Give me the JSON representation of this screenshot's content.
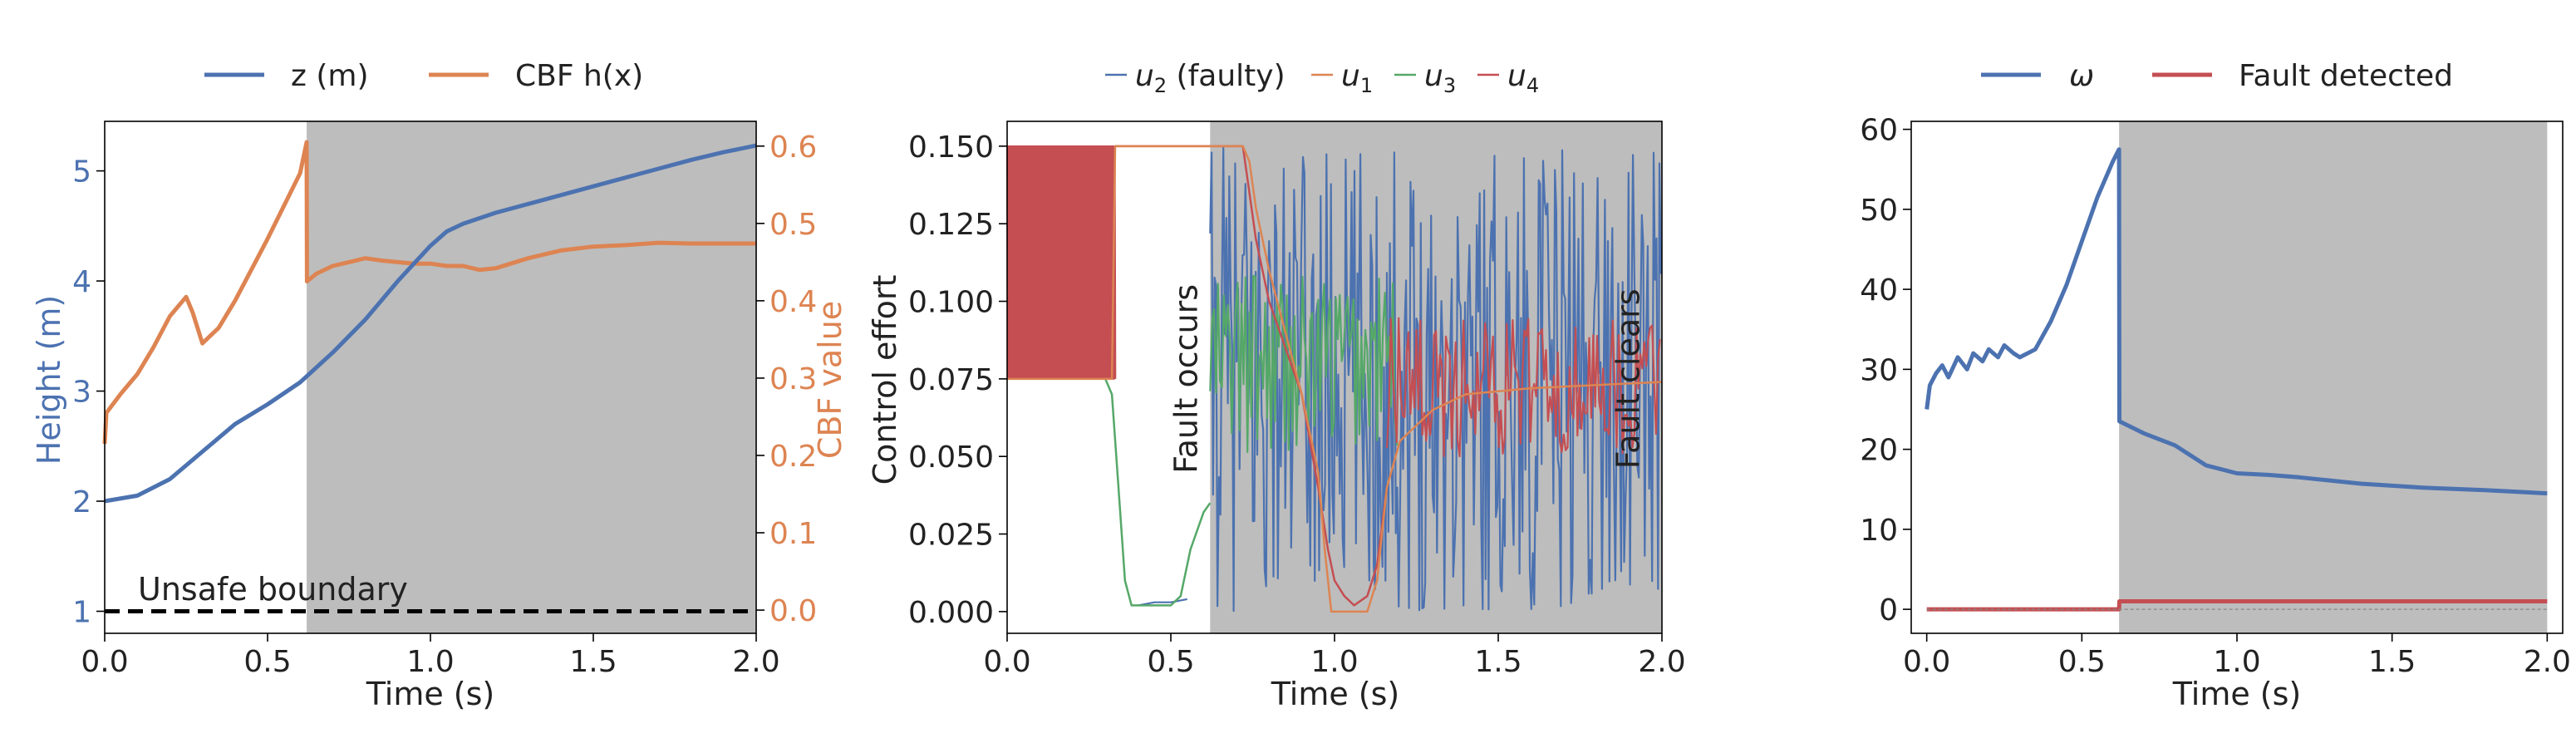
{
  "figure": {
    "colors": {
      "blue": "#4c72b0",
      "orange": "#dd8452",
      "green": "#55a868",
      "red": "#c44e52",
      "shade": "#bdbdbd",
      "axis": "#000000"
    }
  },
  "chart_data": [
    {
      "type": "line",
      "id": "height",
      "xlabel": "Time (s)",
      "ylabel_left": "Height (m)",
      "ylabel_right": "CBF value",
      "xlim": [
        0.0,
        2.0
      ],
      "ylim_left": [
        0.8,
        5.45
      ],
      "ylim_right": [
        -0.03,
        0.632
      ],
      "xticks": [
        0.0,
        0.5,
        1.0,
        1.5,
        2.0
      ],
      "xticklabels": [
        "0.0",
        "0.5",
        "1.0",
        "1.5",
        "2.0"
      ],
      "yticks_left": [
        1,
        2,
        3,
        4,
        5
      ],
      "yticklabels_left": [
        "1",
        "2",
        "3",
        "4",
        "5"
      ],
      "yticks_right": [
        0.0,
        0.1,
        0.2,
        0.3,
        0.4,
        0.5,
        0.6
      ],
      "yticklabels_right": [
        "0.0",
        "0.1",
        "0.2",
        "0.3",
        "0.4",
        "0.5",
        "0.6"
      ],
      "shaded_region_x": [
        0.62,
        2.0
      ],
      "legend": {
        "placement": "top-center",
        "entries": [
          "z (m)",
          "CBF h(x)"
        ]
      },
      "annotation": "Unsafe boundary",
      "boundary_y": 1.0,
      "series": [
        {
          "name": "z (m)",
          "axis": "left",
          "color": "#4c72b0",
          "x": [
            0.0,
            0.1,
            0.2,
            0.3,
            0.4,
            0.5,
            0.6,
            0.7,
            0.8,
            0.9,
            1.0,
            1.05,
            1.1,
            1.2,
            1.3,
            1.4,
            1.5,
            1.6,
            1.7,
            1.8,
            1.9,
            2.0
          ],
          "y": [
            2.0,
            2.05,
            2.2,
            2.45,
            2.7,
            2.88,
            3.08,
            3.35,
            3.65,
            4.0,
            4.32,
            4.45,
            4.52,
            4.62,
            4.7,
            4.78,
            4.86,
            4.94,
            5.02,
            5.1,
            5.17,
            5.23
          ]
        },
        {
          "name": "CBF h(x)",
          "axis": "right",
          "color": "#dd8452",
          "x": [
            0.0,
            0.005,
            0.05,
            0.1,
            0.15,
            0.2,
            0.25,
            0.27,
            0.3,
            0.35,
            0.4,
            0.5,
            0.6,
            0.62,
            0.621,
            0.65,
            0.7,
            0.75,
            0.8,
            0.85,
            0.9,
            0.95,
            1.0,
            1.05,
            1.1,
            1.15,
            1.2,
            1.3,
            1.4,
            1.5,
            1.6,
            1.7,
            1.8,
            1.9,
            2.0
          ],
          "y": [
            0.215,
            0.255,
            0.28,
            0.305,
            0.34,
            0.38,
            0.405,
            0.385,
            0.345,
            0.365,
            0.4,
            0.48,
            0.565,
            0.605,
            0.425,
            0.435,
            0.445,
            0.45,
            0.455,
            0.452,
            0.45,
            0.448,
            0.448,
            0.445,
            0.445,
            0.44,
            0.442,
            0.455,
            0.465,
            0.47,
            0.472,
            0.475,
            0.474,
            0.474,
            0.474
          ]
        }
      ]
    },
    {
      "type": "line",
      "id": "control",
      "xlabel": "Time (s)",
      "ylabel": "Control effort",
      "xlim": [
        0.0,
        2.0
      ],
      "ylim": [
        -0.007,
        0.158
      ],
      "xticks": [
        0.0,
        0.5,
        1.0,
        1.5,
        2.0
      ],
      "xticklabels": [
        "0.0",
        "0.5",
        "1.0",
        "1.5",
        "2.0"
      ],
      "yticks": [
        0.0,
        0.025,
        0.05,
        0.075,
        0.1,
        0.125,
        0.15
      ],
      "yticklabels": [
        "0.000",
        "0.025",
        "0.050",
        "0.075",
        "0.100",
        "0.125",
        "0.150"
      ],
      "shaded_region_x": [
        0.62,
        2.0
      ],
      "legend": {
        "placement": "top-center",
        "entries": [
          "u2 (faulty)",
          "u1",
          "u3",
          "u4"
        ]
      },
      "annotations": [
        {
          "text": "Fault occurs",
          "x": 0.55
        },
        {
          "text": "Fault clears",
          "x": 1.9
        }
      ],
      "series": [
        {
          "name": "u2 (faulty)",
          "color": "#4c72b0",
          "style": "noise",
          "segments": [
            {
              "x0": 0.62,
              "x1": 2.0,
              "lo": 0.0,
              "hi": 0.15
            }
          ],
          "x": [
            0.4,
            0.45,
            0.5,
            0.55
          ],
          "y": [
            0.002,
            0.003,
            0.003,
            0.004
          ]
        },
        {
          "name": "u1",
          "color": "#dd8452",
          "style": "line",
          "x": [
            0.0,
            0.32,
            0.33,
            0.72,
            0.74,
            0.76,
            0.8,
            0.85,
            0.9,
            0.95,
            0.97,
            0.99,
            1.05,
            1.1,
            1.13,
            1.16,
            1.2,
            1.3,
            1.4,
            1.6,
            1.8,
            2.0
          ],
          "y": [
            0.075,
            0.075,
            0.15,
            0.15,
            0.145,
            0.13,
            0.11,
            0.09,
            0.07,
            0.045,
            0.02,
            0.0,
            0.0,
            0.0,
            0.01,
            0.04,
            0.055,
            0.065,
            0.07,
            0.072,
            0.073,
            0.074
          ]
        },
        {
          "name": "u3",
          "color": "#55a868",
          "style": "mixed",
          "x": [
            0.3,
            0.32,
            0.34,
            0.36,
            0.38,
            0.45,
            0.5,
            0.53,
            0.56,
            0.6,
            0.62
          ],
          "y": [
            0.075,
            0.07,
            0.04,
            0.01,
            0.002,
            0.002,
            0.002,
            0.005,
            0.02,
            0.032,
            0.035
          ],
          "noise": {
            "x0": 0.62,
            "x1": 1.2,
            "lo": 0.05,
            "hi": 0.11
          }
        },
        {
          "name": "u4",
          "color": "#c44e52",
          "style": "mixed",
          "band": {
            "x0": 0.0,
            "x1": 0.33,
            "lo": 0.075,
            "hi": 0.15
          },
          "x": [
            0.33,
            0.72,
            0.76,
            0.8,
            0.85,
            0.9,
            0.95,
            0.98,
            1.0,
            1.03,
            1.06,
            1.1,
            1.13,
            1.16
          ],
          "y": [
            0.15,
            0.15,
            0.12,
            0.1,
            0.085,
            0.07,
            0.04,
            0.02,
            0.01,
            0.005,
            0.002,
            0.005,
            0.015,
            0.04
          ],
          "noise": {
            "x0": 1.16,
            "x1": 2.0,
            "lo": 0.05,
            "hi": 0.095
          }
        }
      ]
    },
    {
      "type": "line",
      "id": "omega",
      "xlabel": "Time (s)",
      "xlim": [
        -0.05,
        2.05
      ],
      "ylim": [
        -3,
        61
      ],
      "xticks": [
        0.0,
        0.5,
        1.0,
        1.5,
        2.0
      ],
      "xticklabels": [
        "0.0",
        "0.5",
        "1.0",
        "1.5",
        "2.0"
      ],
      "yticks": [
        0,
        10,
        20,
        30,
        40,
        50,
        60
      ],
      "yticklabels": [
        "0",
        "10",
        "20",
        "30",
        "40",
        "50",
        "60"
      ],
      "shaded_region_x": [
        0.62,
        2.0
      ],
      "legend": {
        "placement": "top-center",
        "entries": [
          "ω",
          "Fault detected"
        ]
      },
      "series": [
        {
          "name": "ω",
          "color": "#4c72b0",
          "x": [
            0.0,
            0.01,
            0.03,
            0.05,
            0.07,
            0.1,
            0.13,
            0.15,
            0.18,
            0.2,
            0.23,
            0.25,
            0.28,
            0.3,
            0.35,
            0.4,
            0.45,
            0.5,
            0.55,
            0.6,
            0.62,
            0.621,
            0.7,
            0.8,
            0.9,
            1.0,
            1.1,
            1.2,
            1.4,
            1.6,
            1.8,
            2.0
          ],
          "y": [
            25.0,
            28.0,
            29.5,
            30.5,
            29.0,
            31.5,
            30.0,
            32.0,
            31.0,
            32.5,
            31.5,
            33.0,
            32.0,
            31.5,
            32.5,
            36.0,
            40.5,
            46.0,
            51.5,
            56.0,
            57.5,
            23.5,
            22.0,
            20.5,
            18.0,
            17.0,
            16.8,
            16.5,
            15.7,
            15.2,
            14.9,
            14.5
          ]
        },
        {
          "name": "Fault detected",
          "color": "#c44e52",
          "x": [
            0.0,
            0.62,
            0.621,
            2.0
          ],
          "y": [
            0,
            0,
            1,
            1
          ]
        }
      ]
    }
  ]
}
